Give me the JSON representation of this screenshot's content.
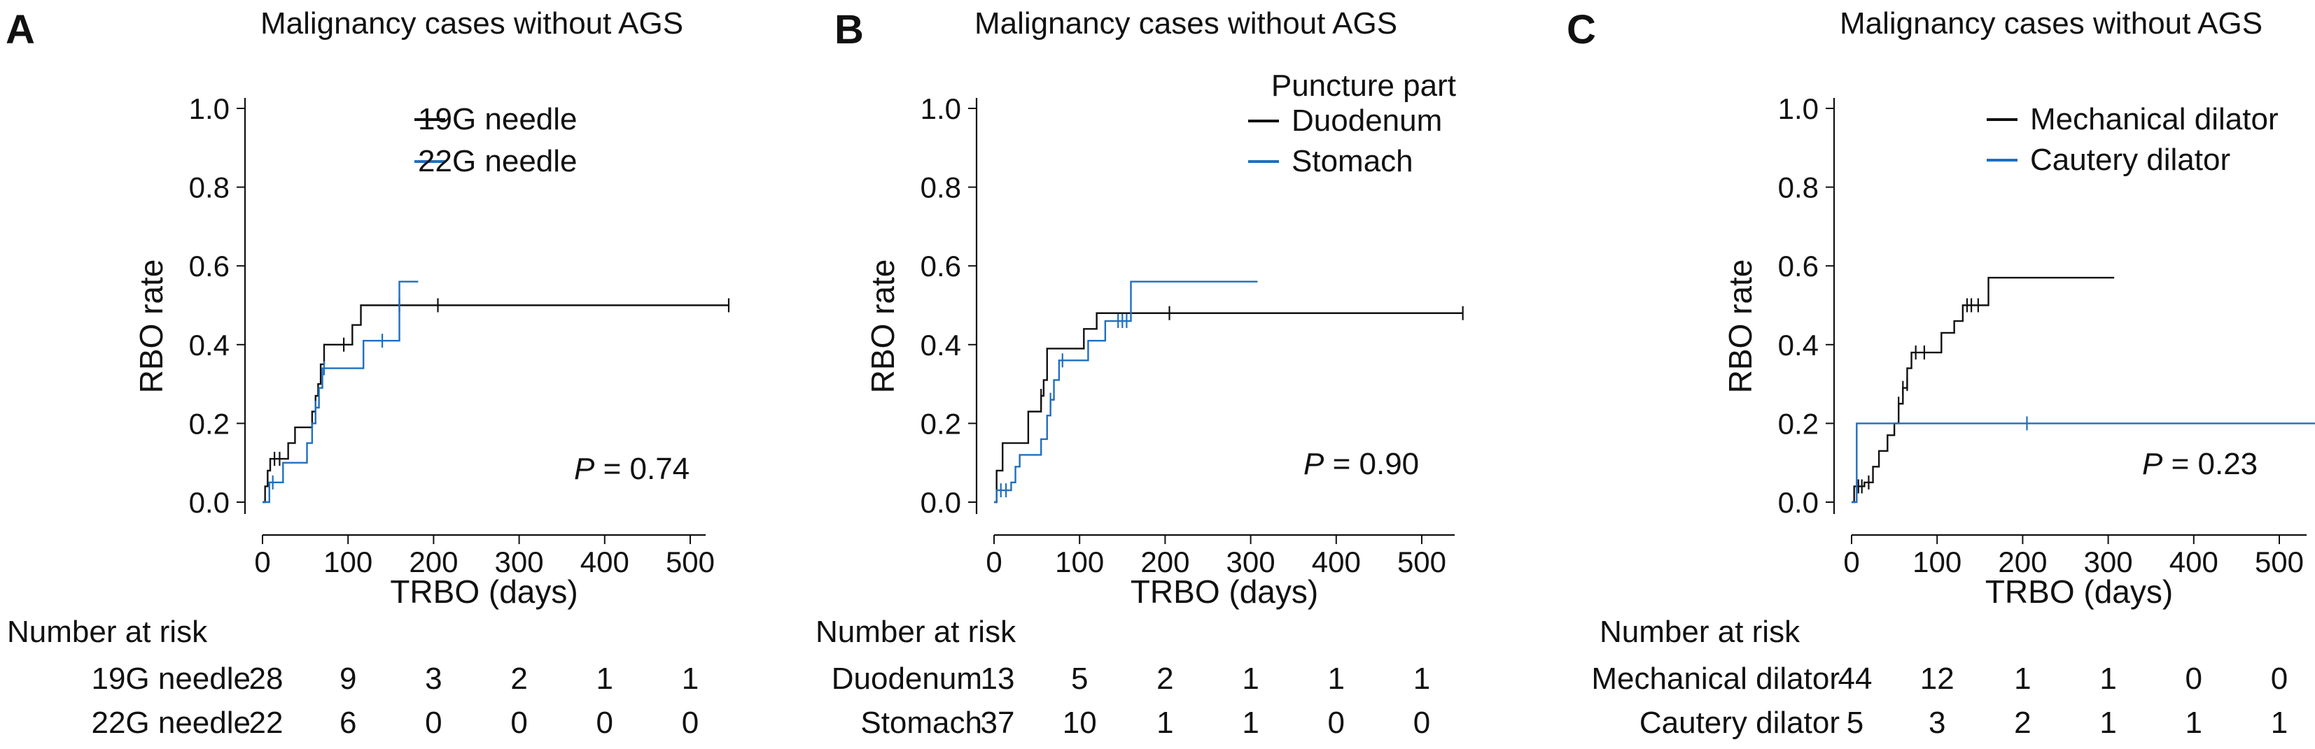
{
  "chart_data": [
    {
      "type": "line",
      "panel": "A",
      "title": "Malignancy cases without AGS",
      "xlabel": "TRBO (days)",
      "ylabel": "RBO rate",
      "xlim": [
        0,
        550
      ],
      "ylim": [
        0,
        1.0
      ],
      "xticks": [
        "0",
        "100",
        "200",
        "300",
        "400",
        "500"
      ],
      "yticks": [
        "0.0",
        "0.2",
        "0.4",
        "0.6",
        "0.8",
        "1.0"
      ],
      "grid": false,
      "legend_title": "",
      "legend_position": "top-right",
      "p_label": "P",
      "p_value": " = 0.74",
      "series": [
        {
          "name": "19G needle",
          "color": "#111111",
          "steps": [
            [
              0,
              0
            ],
            [
              3,
              0.04
            ],
            [
              6,
              0.08
            ],
            [
              9,
              0.11
            ],
            [
              28,
              0.11
            ],
            [
              30,
              0.15
            ],
            [
              38,
              0.19
            ],
            [
              55,
              0.19
            ],
            [
              58,
              0.23
            ],
            [
              62,
              0.27
            ],
            [
              65,
              0.3
            ],
            [
              68,
              0.35
            ],
            [
              72,
              0.4
            ],
            [
              100,
              0.4
            ],
            [
              105,
              0.45
            ],
            [
              115,
              0.5
            ],
            [
              545,
              0.5
            ]
          ],
          "censors": [
            [
              14,
              0.11
            ],
            [
              20,
              0.11
            ],
            [
              95,
              0.4
            ],
            [
              160,
              0.5
            ],
            [
              205,
              0.5
            ],
            [
              545,
              0.5
            ]
          ]
        },
        {
          "name": "22G needle",
          "color": "#1f6fbf",
          "steps": [
            [
              0,
              0
            ],
            [
              6,
              0
            ],
            [
              8,
              0.05
            ],
            [
              20,
              0.05
            ],
            [
              24,
              0.1
            ],
            [
              40,
              0.1
            ],
            [
              52,
              0.15
            ],
            [
              58,
              0.2
            ],
            [
              62,
              0.24
            ],
            [
              66,
              0.29
            ],
            [
              70,
              0.34
            ],
            [
              110,
              0.34
            ],
            [
              118,
              0.41
            ],
            [
              145,
              0.41
            ],
            [
              160,
              0.56
            ],
            [
              182,
              0.56
            ]
          ],
          "censors": [
            [
              12,
              0.05
            ],
            [
              62,
              0.24
            ],
            [
              72,
              0.34
            ],
            [
              140,
              0.41
            ]
          ]
        }
      ],
      "risk_table": {
        "header": "Number at risk",
        "rows": [
          {
            "label": "19G needle",
            "values": [
              "28",
              "9",
              "3",
              "2",
              "1",
              "1"
            ]
          },
          {
            "label": "22G needle",
            "values": [
              "22",
              "6",
              "0",
              "0",
              "0",
              "0"
            ]
          }
        ]
      }
    },
    {
      "type": "line",
      "panel": "B",
      "title": "Malignancy cases without AGS",
      "xlabel": "TRBO (days)",
      "ylabel": "RBO rate",
      "xlim": [
        0,
        550
      ],
      "ylim": [
        0,
        1.0
      ],
      "xticks": [
        "0",
        "100",
        "200",
        "300",
        "400",
        "500"
      ],
      "yticks": [
        "0.0",
        "0.2",
        "0.4",
        "0.6",
        "0.8",
        "1.0"
      ],
      "grid": false,
      "legend_title": "Puncture part",
      "legend_position": "top-right",
      "p_label": "P",
      "p_value": " = 0.90",
      "series": [
        {
          "name": "Duodenum",
          "color": "#111111",
          "steps": [
            [
              0,
              0
            ],
            [
              3,
              0.08
            ],
            [
              10,
              0.15
            ],
            [
              35,
              0.15
            ],
            [
              40,
              0.23
            ],
            [
              55,
              0.27
            ],
            [
              58,
              0.31
            ],
            [
              62,
              0.39
            ],
            [
              100,
              0.39
            ],
            [
              105,
              0.44
            ],
            [
              120,
              0.48
            ],
            [
              548,
              0.48
            ]
          ],
          "censors": [
            [
              55,
              0.27
            ],
            [
              205,
              0.48
            ],
            [
              548,
              0.48
            ]
          ]
        },
        {
          "name": "Stomach",
          "color": "#1f6fbf",
          "steps": [
            [
              0,
              0
            ],
            [
              3,
              0.03
            ],
            [
              20,
              0.05
            ],
            [
              25,
              0.09
            ],
            [
              30,
              0.12
            ],
            [
              50,
              0.12
            ],
            [
              55,
              0.16
            ],
            [
              62,
              0.22
            ],
            [
              66,
              0.26
            ],
            [
              70,
              0.31
            ],
            [
              76,
              0.36
            ],
            [
              100,
              0.36
            ],
            [
              110,
              0.41
            ],
            [
              130,
              0.46
            ],
            [
              160,
              0.56
            ],
            [
              308,
              0.56
            ]
          ],
          "censors": [
            [
              8,
              0.03
            ],
            [
              14,
              0.03
            ],
            [
              66,
              0.26
            ],
            [
              80,
              0.36
            ],
            [
              145,
              0.46
            ],
            [
              150,
              0.46
            ],
            [
              155,
              0.46
            ]
          ]
        }
      ],
      "risk_table": {
        "header": "Number at risk",
        "rows": [
          {
            "label": "Duodenum",
            "values": [
              "13",
              "5",
              "2",
              "1",
              "1",
              "1"
            ]
          },
          {
            "label": "Stomach",
            "values": [
              "37",
              "10",
              "1",
              "1",
              "0",
              "0"
            ]
          }
        ]
      }
    },
    {
      "type": "line",
      "panel": "C",
      "title": "Malignancy cases without AGS",
      "xlabel": "TRBO (days)",
      "ylabel": "RBO rate",
      "xlim": [
        0,
        550
      ],
      "ylim": [
        0,
        1.0
      ],
      "xticks": [
        "0",
        "100",
        "200",
        "300",
        "400",
        "500"
      ],
      "yticks": [
        "0.0",
        "0.2",
        "0.4",
        "0.6",
        "0.8",
        "1.0"
      ],
      "grid": false,
      "legend_title": "",
      "legend_position": "top-right",
      "p_label": "P",
      "p_value": " = 0.23",
      "series": [
        {
          "name": "Mechanical dilator",
          "color": "#111111",
          "steps": [
            [
              0,
              0
            ],
            [
              3,
              0.04
            ],
            [
              10,
              0.04
            ],
            [
              15,
              0.05
            ],
            [
              25,
              0.09
            ],
            [
              32,
              0.13
            ],
            [
              42,
              0.17
            ],
            [
              50,
              0.2
            ],
            [
              55,
              0.25
            ],
            [
              60,
              0.29
            ],
            [
              65,
              0.34
            ],
            [
              70,
              0.38
            ],
            [
              95,
              0.38
            ],
            [
              105,
              0.43
            ],
            [
              120,
              0.46
            ],
            [
              130,
              0.5
            ],
            [
              155,
              0.5
            ],
            [
              160,
              0.57
            ],
            [
              307,
              0.57
            ]
          ],
          "censors": [
            [
              8,
              0.04
            ],
            [
              12,
              0.04
            ],
            [
              20,
              0.05
            ],
            [
              55,
              0.25
            ],
            [
              60,
              0.29
            ],
            [
              65,
              0.3
            ],
            [
              75,
              0.38
            ],
            [
              85,
              0.38
            ],
            [
              135,
              0.5
            ],
            [
              140,
              0.5
            ],
            [
              148,
              0.5
            ]
          ]
        },
        {
          "name": "Cautery dilator",
          "color": "#1f6fbf",
          "steps": [
            [
              0,
              0
            ],
            [
              6,
              0.2
            ],
            [
              548,
              0.2
            ]
          ],
          "censors": [
            [
              205,
              0.2
            ],
            [
              548,
              0.2
            ]
          ]
        }
      ],
      "risk_table": {
        "header": "Number at risk",
        "rows": [
          {
            "label": "Mechanical dilator",
            "values": [
              "44",
              "12",
              "1",
              "1",
              "0",
              "0"
            ]
          },
          {
            "label": "Cautery dilator",
            "values": [
              "5",
              "3",
              "2",
              "1",
              "1",
              "1"
            ]
          }
        ]
      }
    }
  ]
}
